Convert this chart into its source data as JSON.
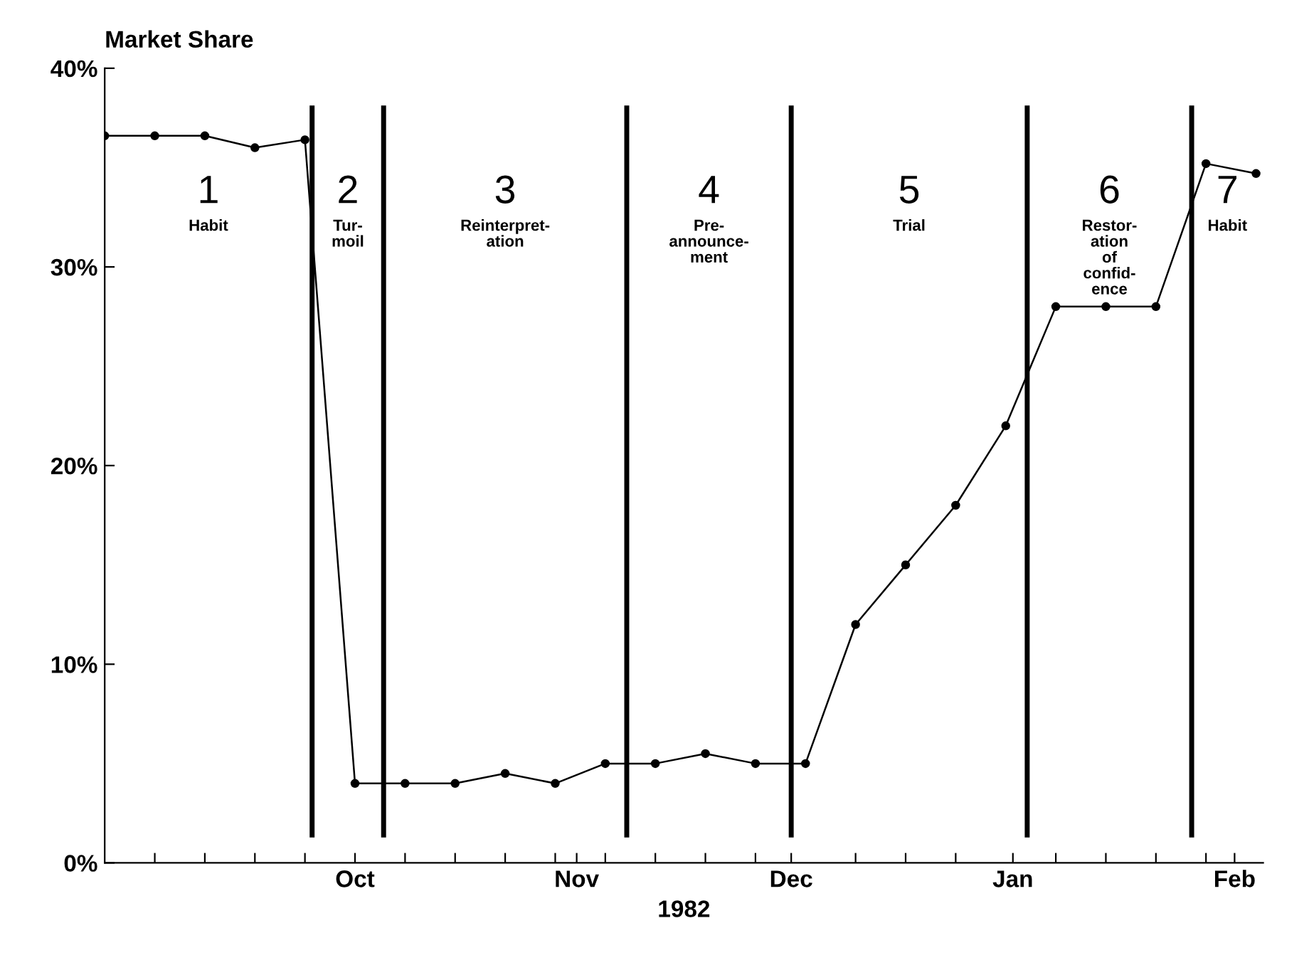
{
  "chart_data": {
    "type": "line",
    "ylabel": "Market Share",
    "xlabel": "1982",
    "x": [
      "1982-08-27",
      "1982-09-03",
      "1982-09-10",
      "1982-09-17",
      "1982-09-24",
      "1982-10-01",
      "1982-10-08",
      "1982-10-15",
      "1982-10-22",
      "1982-10-29",
      "1982-11-05",
      "1982-11-12",
      "1982-11-19",
      "1982-11-26",
      "1982-12-03",
      "1982-12-10",
      "1982-12-17",
      "1982-12-24",
      "1982-12-31",
      "1983-01-07",
      "1983-01-14",
      "1983-01-21",
      "1983-01-28",
      "1983-02-04"
    ],
    "values": [
      36.6,
      36.6,
      36.6,
      36.0,
      36.4,
      4,
      4,
      4,
      4.5,
      4,
      5,
      5,
      5.5,
      5,
      5,
      12,
      15,
      18,
      22,
      28,
      28,
      28,
      35.2,
      34.7
    ],
    "color": "#000000",
    "marker": "circle",
    "line_style": "solid",
    "grid": false,
    "legend": false,
    "xlim": [
      "1982-08-27",
      "1983-02-05"
    ],
    "ylim": [
      0,
      40
    ],
    "yticks": [
      {
        "value": 0,
        "label": "0%"
      },
      {
        "value": 10,
        "label": "10%"
      },
      {
        "value": 20,
        "label": "20%"
      },
      {
        "value": 30,
        "label": "30%"
      },
      {
        "value": 40,
        "label": "40%"
      }
    ],
    "xticks": [
      {
        "value": "1982-09-03",
        "label": null
      },
      {
        "value": "1982-09-10",
        "label": null
      },
      {
        "value": "1982-09-17",
        "label": null
      },
      {
        "value": "1982-09-24",
        "label": null
      },
      {
        "value": "1982-10-01",
        "label": "Oct"
      },
      {
        "value": "1982-10-08",
        "label": null
      },
      {
        "value": "1982-10-15",
        "label": null
      },
      {
        "value": "1982-10-22",
        "label": null
      },
      {
        "value": "1982-10-29",
        "label": null
      },
      {
        "value": "1982-11-01",
        "label": "Nov"
      },
      {
        "value": "1982-11-05",
        "label": null
      },
      {
        "value": "1982-11-12",
        "label": null
      },
      {
        "value": "1982-11-19",
        "label": null
      },
      {
        "value": "1982-11-26",
        "label": null
      },
      {
        "value": "1982-12-01",
        "label": "Dec"
      },
      {
        "value": "1982-12-10",
        "label": null
      },
      {
        "value": "1982-12-17",
        "label": null
      },
      {
        "value": "1982-12-24",
        "label": null
      },
      {
        "value": "1983-01-01",
        "label": "Jan"
      },
      {
        "value": "1983-01-07",
        "label": null
      },
      {
        "value": "1983-01-14",
        "label": null
      },
      {
        "value": "1983-01-21",
        "label": null
      },
      {
        "value": "1983-01-28",
        "label": null
      },
      {
        "value": "1983-02-01",
        "label": "Feb"
      }
    ],
    "ref_lines": [
      {
        "axis": "x",
        "value": "1982-09-25",
        "color": "#000000"
      },
      {
        "axis": "x",
        "value": "1982-10-05",
        "color": "#000000"
      },
      {
        "axis": "x",
        "value": "1982-11-08",
        "color": "#000000"
      },
      {
        "axis": "x",
        "value": "1982-12-01",
        "color": "#000000"
      },
      {
        "axis": "x",
        "value": "1983-01-03",
        "color": "#000000"
      },
      {
        "axis": "x",
        "value": "1983-01-26",
        "color": "#000000"
      }
    ],
    "annotations": [
      "1\nHabit",
      "2\nTur-\nmoil",
      "3\nReinterpret-\nation",
      "4\nPre-\nannounce-\nment",
      "5\nTrial",
      "6\nRestor-\nation\nof\nconfid-\nence",
      "7\nHabit"
    ]
  }
}
